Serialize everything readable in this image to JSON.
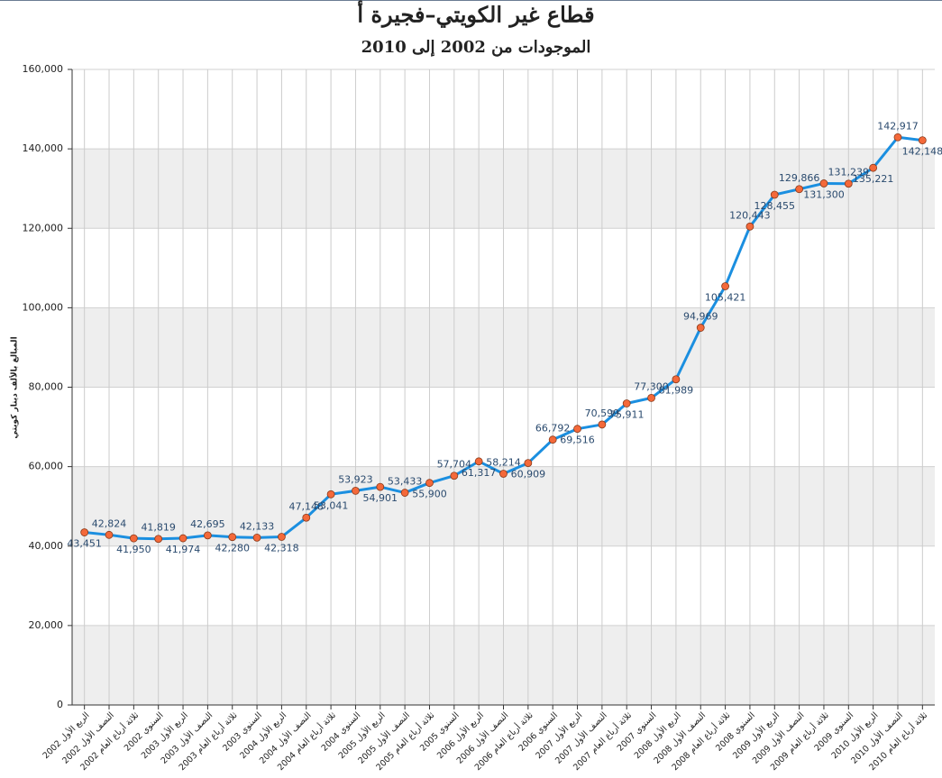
{
  "chart_data": {
    "type": "line",
    "title": "قطاع غير الكويتي–فجيرة أ",
    "subtitle": "الموجودات من 2002 إلى 2010",
    "y_label": "المبالغ بالألف دينار كويتي",
    "categories": [
      "الربع الأول 2002",
      "النصف الأول 2002",
      "ثلاثة أرباع العام 2002",
      "السنوي 2002",
      "الربع الأول 2003",
      "النصف الأول 2003",
      "ثلاثة أرباع العام 2003",
      "السنوي 2003",
      "الربع الأول 2004",
      "النصف الأول 2004",
      "ثلاثة أرباع العام 2004",
      "السنوي 2004",
      "الربع الأول 2005",
      "النصف الأول 2005",
      "ثلاثة أرباع العام 2005",
      "السنوي 2005",
      "الربع الأول 2006",
      "النصف الأول 2006",
      "ثلاثة أرباع العام 2006",
      "السنوي 2006",
      "الربع الأول 2007",
      "النصف الأول 2007",
      "ثلاثة أرباع العام 2007",
      "السنوي 2007",
      "الربع الأول 2008",
      "النصف الأول 2008",
      "ثلاثة أرباع العام 2008",
      "السنوي 2008",
      "الربع الأول 2009",
      "النصف الأول 2009",
      "ثلاثة أرباع العام 2009",
      "السنوي 2009",
      "الربع الأول 2010",
      "النصف الأول 2010",
      "ثلاثة أرباع العام 2010"
    ],
    "values": [
      43451,
      42824,
      41950,
      41819,
      41974,
      42695,
      42280,
      42133,
      42318,
      47148,
      53041,
      53923,
      54901,
      53433,
      55900,
      57704,
      61317,
      58214,
      60909,
      66792,
      69516,
      70599,
      75911,
      77300,
      81989,
      94969,
      105421,
      120443,
      128455,
      129866,
      131300,
      131239,
      135221,
      142917,
      142148
    ],
    "value_labels": [
      "43,451",
      "42,824",
      "41,950",
      "41,819",
      "41,974",
      "42,695",
      "42,280",
      "42,133",
      "42,318",
      "47,148",
      "53,041",
      "53,923",
      "54,901",
      "53,433",
      "55,900",
      "57,704",
      "61,317",
      "58,214",
      "60,909",
      "66,792",
      "69,516",
      "70,599",
      "75,911",
      "77,300",
      "81,989",
      "94,969",
      "105,421",
      "120,443",
      "128,455",
      "129,866",
      "131,300",
      "131,239",
      "135,221",
      "142,917",
      "142,148"
    ],
    "color": "#1b8fe0",
    "marker_color": "#f4693a",
    "band_color": "#eeeeee",
    "ylim": [
      0,
      160000
    ],
    "yticks": [
      0,
      {
        "value": 20000,
        "label": "20,000"
      },
      {
        "value": 40000,
        "label": "40,000"
      },
      {
        "value": 60000,
        "label": "60,000"
      },
      {
        "value": 80000,
        "label": "80,000"
      },
      {
        "value": 100000,
        "label": "100,000"
      },
      {
        "value": 120000,
        "label": "120,000"
      },
      {
        "value": 140000,
        "label": "140,000"
      },
      {
        "value": 160000,
        "label": "160,000"
      }
    ],
    "grid": true
  }
}
